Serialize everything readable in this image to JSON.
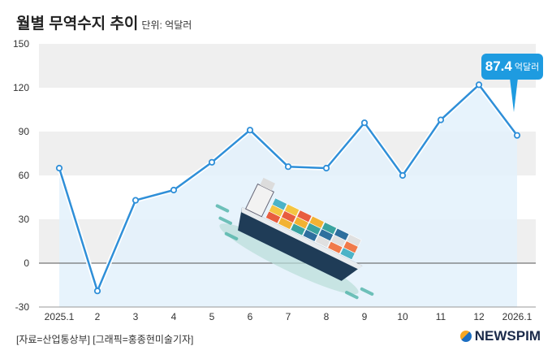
{
  "header": {
    "title": "월별 무역수지 추이",
    "unit": "단위: 억달러"
  },
  "callout": {
    "value": "87.4",
    "unit": "억달러"
  },
  "footer": {
    "source": "[자료=산업통상부] [그래픽=홍종현미술기자]",
    "logo": "NEWSPIM"
  },
  "colors": {
    "line": "#2f8fd8",
    "area": "#e3f1fb",
    "band": "#efefef",
    "callout": "#1e9be0"
  },
  "chart_data": {
    "type": "area",
    "categories": [
      "2025.1",
      "2",
      "3",
      "4",
      "5",
      "6",
      "7",
      "8",
      "9",
      "10",
      "11",
      "12",
      "2026.1"
    ],
    "series": [
      {
        "values": [
          65,
          -19,
          43,
          50,
          69,
          91,
          66,
          65,
          96,
          60,
          98,
          122,
          87.4
        ]
      }
    ],
    "ylim": [
      -30,
      150
    ],
    "yticks": [
      -30,
      0,
      30,
      60,
      90,
      120,
      150
    ],
    "grid": "alternating horizontal bands",
    "annotations": [
      {
        "index": 12,
        "text": "87.4 억달러"
      }
    ]
  }
}
